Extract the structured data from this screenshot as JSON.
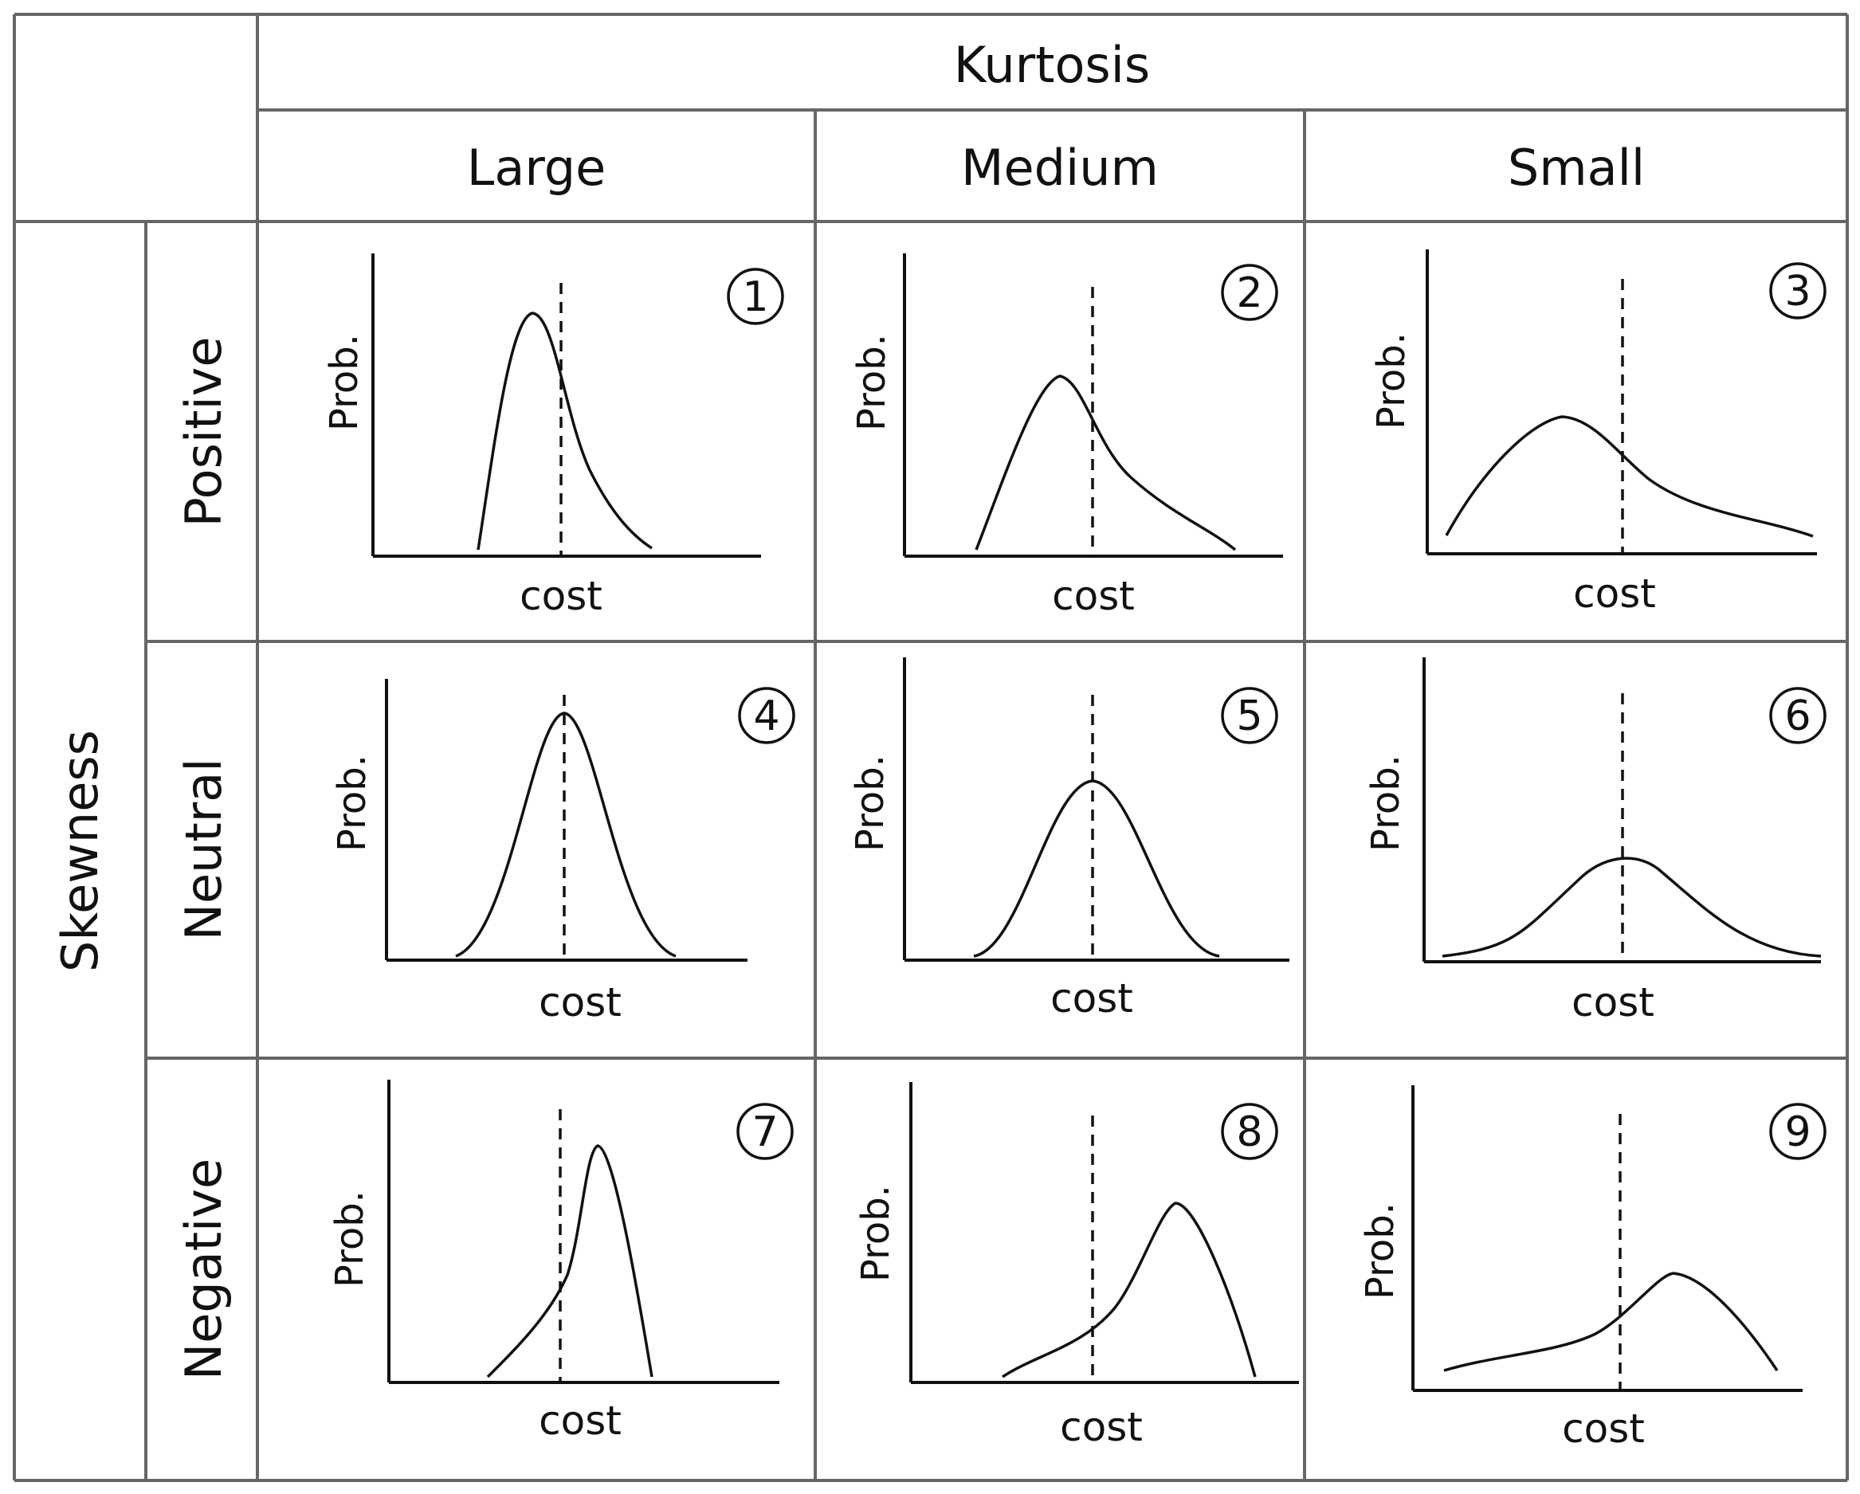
{
  "header": {
    "kurtosis_label": "Kurtosis",
    "skewness_label": "Skewness",
    "columns": [
      "Large",
      "Medium",
      "Small"
    ],
    "rows": [
      "Positive",
      "Neutral",
      "Negative"
    ]
  },
  "chart_data": [
    {
      "type": "line",
      "number": "1",
      "skewness": "Positive",
      "kurtosis": "Large",
      "xlabel": "cost",
      "ylabel": "Prob."
    },
    {
      "type": "line",
      "number": "2",
      "skewness": "Positive",
      "kurtosis": "Medium",
      "xlabel": "cost",
      "ylabel": "Prob."
    },
    {
      "type": "line",
      "number": "3",
      "skewness": "Positive",
      "kurtosis": "Small",
      "xlabel": "cost",
      "ylabel": "Prob."
    },
    {
      "type": "line",
      "number": "4",
      "skewness": "Neutral",
      "kurtosis": "Large",
      "xlabel": "cost",
      "ylabel": "Prob."
    },
    {
      "type": "line",
      "number": "5",
      "skewness": "Neutral",
      "kurtosis": "Medium",
      "xlabel": "cost",
      "ylabel": "Prob."
    },
    {
      "type": "line",
      "number": "6",
      "skewness": "Neutral",
      "kurtosis": "Small",
      "xlabel": "cost",
      "ylabel": "Prob."
    },
    {
      "type": "line",
      "number": "7",
      "skewness": "Negative",
      "kurtosis": "Large",
      "xlabel": "cost",
      "ylabel": "Prob."
    },
    {
      "type": "line",
      "number": "8",
      "skewness": "Negative",
      "kurtosis": "Medium",
      "xlabel": "cost",
      "ylabel": "Prob."
    },
    {
      "type": "line",
      "number": "9",
      "skewness": "Negative",
      "kurtosis": "Small",
      "xlabel": "cost",
      "ylabel": "Prob."
    }
  ]
}
